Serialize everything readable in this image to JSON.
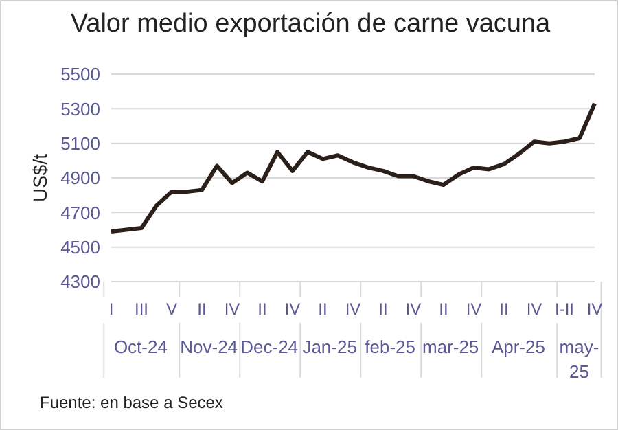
{
  "chart_data": {
    "type": "line",
    "title": "Valor medio exportación de carne vacuna",
    "ylabel": "US$/t",
    "categories": [
      "I",
      null,
      "III",
      null,
      "V",
      null,
      "II",
      null,
      "IV",
      null,
      "II",
      null,
      "IV",
      null,
      "II",
      null,
      "IV",
      null,
      "II",
      null,
      "IV",
      null,
      "II",
      null,
      "IV",
      null,
      "II",
      null,
      "IV",
      null,
      "I-II",
      null,
      "IV"
    ],
    "series": [
      {
        "color": "#2b1f1a",
        "values": [
          4590,
          4600,
          4610,
          4740,
          4820,
          4820,
          4830,
          4970,
          4870,
          4930,
          4880,
          5050,
          4940,
          5050,
          5010,
          5030,
          4990,
          4960,
          4940,
          4910,
          4910,
          4880,
          4860,
          4920,
          4960,
          4950,
          4980,
          5040,
          5110,
          5100,
          5110,
          5130,
          5330
        ]
      }
    ],
    "ylim": [
      4300,
      5500
    ],
    "yticks": [
      4300,
      4500,
      4700,
      4900,
      5100,
      5300,
      5500
    ],
    "grid": "y",
    "annotations": [
      "Oct-24",
      "Nov-24",
      "Dec-24",
      "Jan-25",
      "feb-25",
      "mar-25",
      "Apr-25",
      "may-25",
      "Fuente: en base a Secex"
    ]
  }
}
